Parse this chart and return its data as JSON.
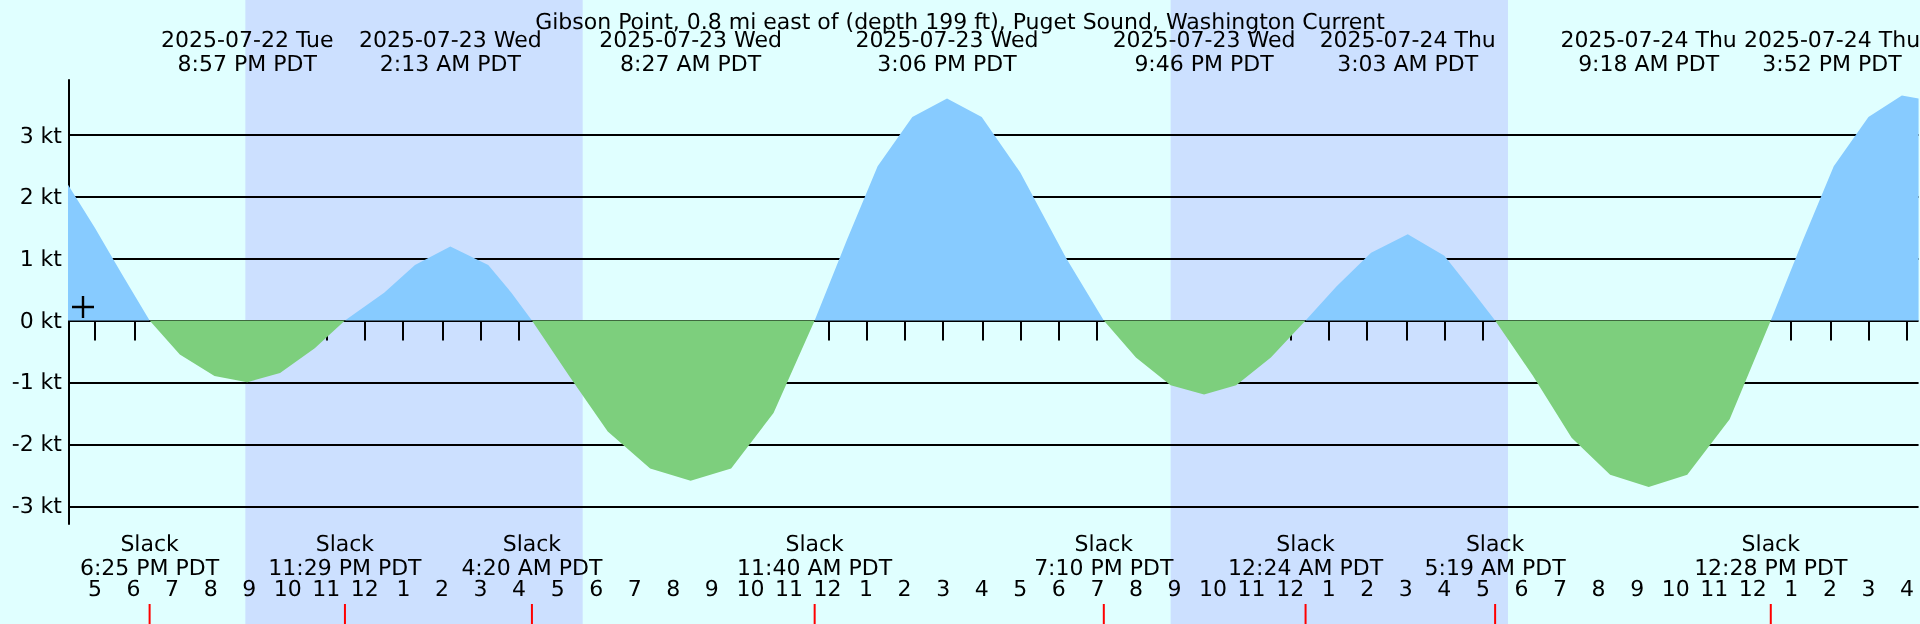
{
  "chart_data": {
    "type": "area",
    "title": "Gibson Point, 0.8 mi east of (depth 199 ft), Puget Sound, Washington Current",
    "xlim": [
      "2025-07-22T16:18",
      "2025-07-24T16:18"
    ],
    "xticks": [
      {
        "value": "2025-07-22T17:00",
        "label": "5"
      },
      {
        "value": "2025-07-22T18:00",
        "label": "6"
      },
      {
        "value": "2025-07-22T19:00",
        "label": "7"
      },
      {
        "value": "2025-07-22T20:00",
        "label": "8"
      },
      {
        "value": "2025-07-22T21:00",
        "label": "9"
      },
      {
        "value": "2025-07-22T22:00",
        "label": "10"
      },
      {
        "value": "2025-07-22T23:00",
        "label": "11"
      },
      {
        "value": "2025-07-23T00:00",
        "label": "12"
      },
      {
        "value": "2025-07-23T01:00",
        "label": "1"
      },
      {
        "value": "2025-07-23T02:00",
        "label": "2"
      },
      {
        "value": "2025-07-23T03:00",
        "label": "3"
      },
      {
        "value": "2025-07-23T04:00",
        "label": "4"
      },
      {
        "value": "2025-07-23T05:00",
        "label": "5"
      },
      {
        "value": "2025-07-23T06:00",
        "label": "6"
      },
      {
        "value": "2025-07-23T07:00",
        "label": "7"
      },
      {
        "value": "2025-07-23T08:00",
        "label": "8"
      },
      {
        "value": "2025-07-23T09:00",
        "label": "9"
      },
      {
        "value": "2025-07-23T10:00",
        "label": "10"
      },
      {
        "value": "2025-07-23T11:00",
        "label": "11"
      },
      {
        "value": "2025-07-23T12:00",
        "label": "12"
      },
      {
        "value": "2025-07-23T13:00",
        "label": "1"
      },
      {
        "value": "2025-07-23T14:00",
        "label": "2"
      },
      {
        "value": "2025-07-23T15:00",
        "label": "3"
      },
      {
        "value": "2025-07-23T16:00",
        "label": "4"
      },
      {
        "value": "2025-07-23T17:00",
        "label": "5"
      },
      {
        "value": "2025-07-23T18:00",
        "label": "6"
      },
      {
        "value": "2025-07-23T19:00",
        "label": "7"
      },
      {
        "value": "2025-07-23T20:00",
        "label": "8"
      },
      {
        "value": "2025-07-23T21:00",
        "label": "9"
      },
      {
        "value": "2025-07-23T22:00",
        "label": "10"
      },
      {
        "value": "2025-07-23T23:00",
        "label": "11"
      },
      {
        "value": "2025-07-24T00:00",
        "label": "12"
      },
      {
        "value": "2025-07-24T01:00",
        "label": "1"
      },
      {
        "value": "2025-07-24T02:00",
        "label": "2"
      },
      {
        "value": "2025-07-24T03:00",
        "label": "3"
      },
      {
        "value": "2025-07-24T04:00",
        "label": "4"
      },
      {
        "value": "2025-07-24T05:00",
        "label": "5"
      },
      {
        "value": "2025-07-24T06:00",
        "label": "6"
      },
      {
        "value": "2025-07-24T07:00",
        "label": "7"
      },
      {
        "value": "2025-07-24T08:00",
        "label": "8"
      },
      {
        "value": "2025-07-24T09:00",
        "label": "9"
      },
      {
        "value": "2025-07-24T10:00",
        "label": "10"
      },
      {
        "value": "2025-07-24T11:00",
        "label": "11"
      },
      {
        "value": "2025-07-24T12:00",
        "label": "12"
      },
      {
        "value": "2025-07-24T13:00",
        "label": "1"
      },
      {
        "value": "2025-07-24T14:00",
        "label": "2"
      },
      {
        "value": "2025-07-24T15:00",
        "label": "3"
      },
      {
        "value": "2025-07-24T16:00",
        "label": "4"
      }
    ],
    "ylim": [
      -3.3,
      3.9
    ],
    "yticks": [
      {
        "value": -3,
        "label": "-3 kt"
      },
      {
        "value": -2,
        "label": "-2 kt"
      },
      {
        "value": -1,
        "label": "-1 kt"
      },
      {
        "value": 0,
        "label": "0 kt"
      },
      {
        "value": 1,
        "label": "1 kt"
      },
      {
        "value": 2,
        "label": "2 kt"
      },
      {
        "value": 3,
        "label": "3 kt"
      }
    ],
    "grid": "y",
    "marker": "none",
    "series": [
      {
        "color": "#87cbff",
        "x": [
          "2025-07-22T16:18",
          "2025-07-22T17:00",
          "2025-07-22T17:42",
          "2025-07-22T18:25",
          "2025-07-22T21:00",
          "2025-07-22T23:29",
          "2025-07-23T00:30",
          "2025-07-23T01:18",
          "2025-07-23T02:13",
          "2025-07-23T03:12",
          "2025-07-23T03:48",
          "2025-07-23T04:20",
          "2025-07-23T08:00",
          "2025-07-23T11:40",
          "2025-07-23T12:30",
          "2025-07-23T13:18",
          "2025-07-23T14:12",
          "2025-07-23T15:06",
          "2025-07-23T16:00",
          "2025-07-23T17:00",
          "2025-07-23T18:12",
          "2025-07-23T19:10",
          "2025-07-23T22:00",
          "2025-07-24T00:24",
          "2025-07-24T01:12",
          "2025-07-24T02:06",
          "2025-07-24T03:03",
          "2025-07-24T04:00",
          "2025-07-24T04:42",
          "2025-07-24T05:19",
          "2025-07-24T09:00",
          "2025-07-24T12:28",
          "2025-07-24T13:18",
          "2025-07-24T14:06",
          "2025-07-24T15:00",
          "2025-07-24T15:52",
          "2025-07-24T16:18"
        ],
        "values": [
          2.2,
          1.5,
          0.75,
          0,
          null,
          0,
          0.45,
          0.9,
          1.2,
          0.9,
          0.45,
          0,
          null,
          0,
          1.3,
          2.5,
          3.3,
          3.6,
          3.3,
          2.4,
          1.0,
          0,
          null,
          0,
          0.55,
          1.1,
          1.4,
          1.05,
          0.5,
          0,
          null,
          0,
          1.3,
          2.5,
          3.3,
          3.65,
          3.6
        ]
      },
      {
        "color": "#7dcf7d",
        "x": [
          "2025-07-22T18:25",
          "2025-07-22T19:12",
          "2025-07-22T20:06",
          "2025-07-22T20:57",
          "2025-07-22T21:48",
          "2025-07-22T22:42",
          "2025-07-22T23:29",
          "2025-07-23T02:00",
          "2025-07-23T04:20",
          "2025-07-23T05:18",
          "2025-07-23T06:18",
          "2025-07-23T07:24",
          "2025-07-23T08:27",
          "2025-07-23T09:30",
          "2025-07-23T10:36",
          "2025-07-23T11:40",
          "2025-07-23T16:00",
          "2025-07-23T19:10",
          "2025-07-23T20:00",
          "2025-07-23T20:54",
          "2025-07-23T21:46",
          "2025-07-23T22:36",
          "2025-07-23T23:30",
          "2025-07-24T00:24",
          "2025-07-24T03:00",
          "2025-07-24T05:19",
          "2025-07-24T06:18",
          "2025-07-24T07:18",
          "2025-07-24T08:18",
          "2025-07-24T09:18",
          "2025-07-24T10:18",
          "2025-07-24T11:24",
          "2025-07-24T12:28"
        ],
        "values": [
          0,
          -0.55,
          -0.9,
          -1.0,
          -0.85,
          -0.45,
          0,
          null,
          0,
          -0.9,
          -1.8,
          -2.4,
          -2.6,
          -2.4,
          -1.5,
          0,
          null,
          0,
          -0.6,
          -1.05,
          -1.2,
          -1.05,
          -0.6,
          0,
          null,
          0,
          -0.9,
          -1.9,
          -2.5,
          -2.7,
          -2.5,
          -1.6,
          0
        ]
      }
    ],
    "bands": [
      {
        "axis": "x",
        "from": "2025-07-22T20:54",
        "to": "2025-07-23T05:39",
        "color": "#cce0ff"
      },
      {
        "axis": "x",
        "from": "2025-07-23T20:54",
        "to": "2025-07-24T05:39",
        "color": "#cce0ff"
      }
    ],
    "annotations": [
      "2025-07-22 Tue\n8:57 PM PDT",
      "2025-07-23 Wed\n2:13 AM PDT",
      "2025-07-23 Wed\n8:27 AM PDT",
      "2025-07-23 Wed\n3:06 PM PDT",
      "2025-07-23 Wed\n9:46 PM PDT",
      "2025-07-24 Thu\n3:03 AM PDT",
      "2025-07-24 Thu\n9:18 AM PDT",
      "2025-07-24 Thu\n3:52 PM PDT",
      {
        "text": "Slack\n6:25 PM PDT",
        "x": "2025-07-22T18:25"
      },
      {
        "text": "Slack\n11:29 PM PDT",
        "x": "2025-07-22T23:29"
      },
      {
        "text": "Slack\n4:20 AM PDT",
        "x": "2025-07-23T04:20"
      },
      {
        "text": "Slack\n11:40 AM PDT",
        "x": "2025-07-23T11:40"
      },
      {
        "text": "Slack\n7:10 PM PDT",
        "x": "2025-07-23T19:10"
      },
      {
        "text": "Slack\n12:24 AM PDT",
        "x": "2025-07-24T00:24"
      },
      {
        "text": "Slack\n5:19 AM PDT",
        "x": "2025-07-24T05:19"
      },
      {
        "text": "Slack\n12:28 PM PDT",
        "x": "2025-07-24T12:28"
      }
    ]
  }
}
